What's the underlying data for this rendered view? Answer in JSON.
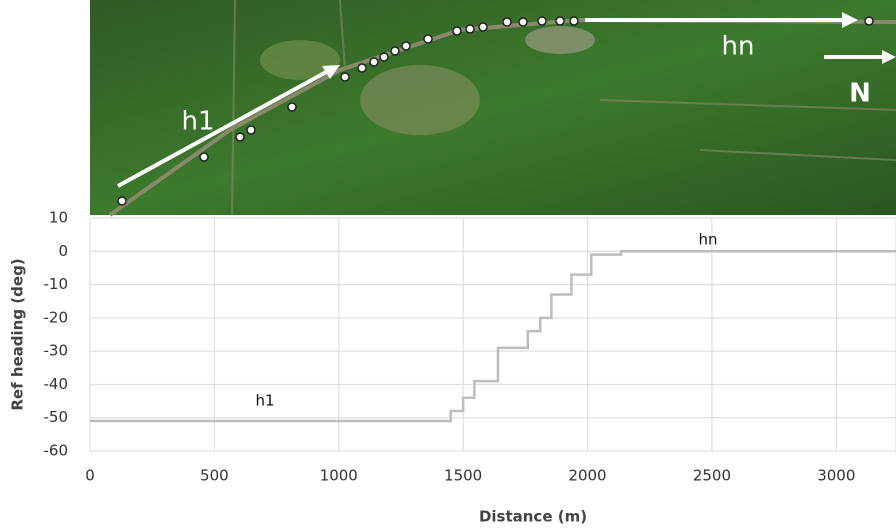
{
  "chart_data": {
    "type": "step",
    "x_label": "Distance (m)",
    "y_label": "Ref heading (deg)",
    "x": [
      0,
      1450,
      1500,
      1545,
      1640,
      1760,
      1810,
      1855,
      1935,
      2015,
      2135,
      3240
    ],
    "series": [
      {
        "values": [
          -51,
          -48,
          -44,
          -39,
          -29,
          -24,
          -20,
          -13,
          -7,
          -1,
          0,
          0
        ],
        "color": "#bdbdbd"
      }
    ],
    "xlim": [
      0,
      3240
    ],
    "xticks": [
      0,
      500,
      1000,
      1500,
      2000,
      2500,
      3000
    ],
    "ylim": [
      -60,
      10
    ],
    "yticks": [
      -60,
      -50,
      -40,
      -30,
      -20,
      -10,
      0,
      10
    ],
    "grid": true,
    "annotations": [
      "h1",
      "hn"
    ]
  },
  "map": {
    "labels": [
      "h1",
      "hn",
      "N"
    ]
  }
}
